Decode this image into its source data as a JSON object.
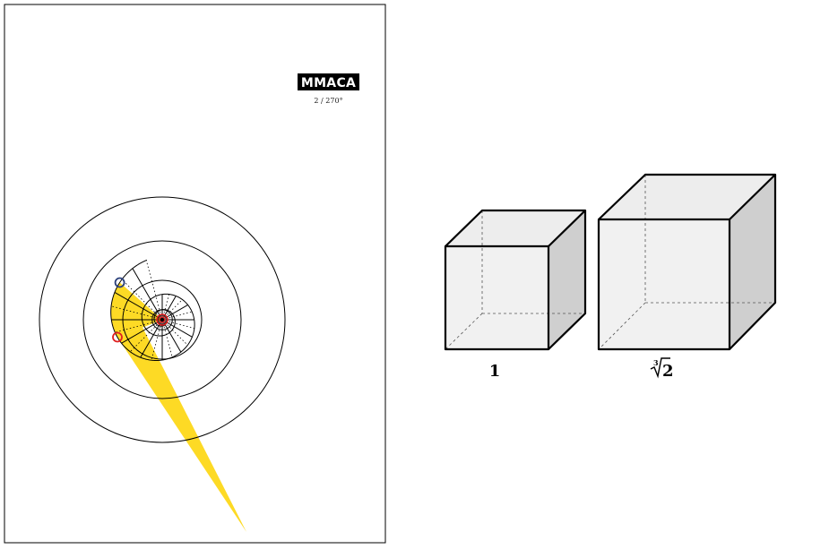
{
  "badge": {
    "text": "MMACA",
    "background": "#000000"
  },
  "subtitle": "2 / 270°",
  "spiral": {
    "fill_color": "#FDDA25",
    "start_marker_color": "#E02020",
    "end_marker_color": "#2A3F7A",
    "center_marker_color": "#E02020"
  },
  "cubes": [
    {
      "label": "1"
    },
    {
      "label_index": "3",
      "label_radicand": "2"
    }
  ]
}
